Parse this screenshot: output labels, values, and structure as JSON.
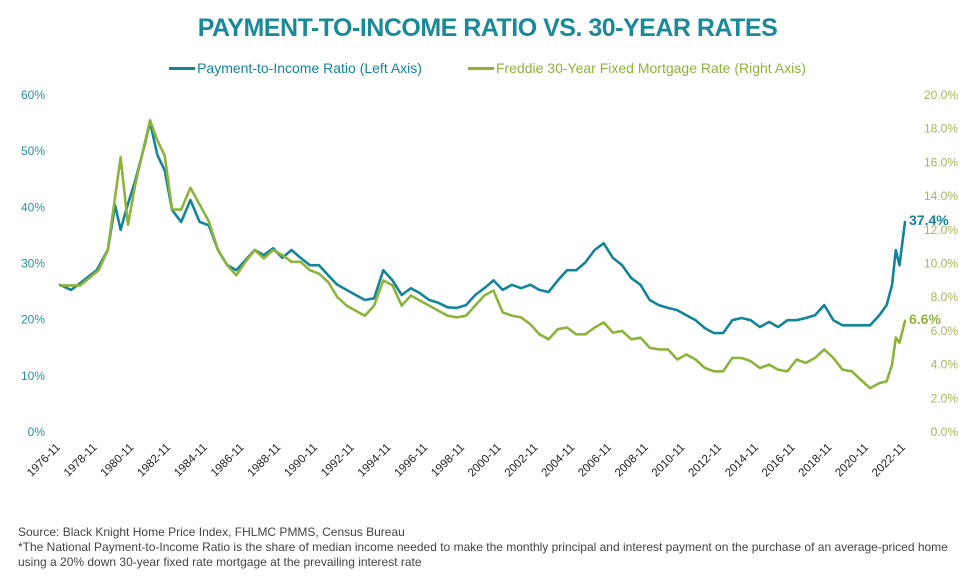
{
  "chart_data": {
    "type": "line",
    "title": "PAYMENT-TO-INCOME RATIO VS. 30-YEAR RATES",
    "xlabel": "",
    "x_range": [
      1976.9,
      2022.9
    ],
    "x_tick_labels": [
      "1976-11",
      "1978-11",
      "1980-11",
      "1982-11",
      "1984-11",
      "1986-11",
      "1988-11",
      "1990-11",
      "1992-11",
      "1994-11",
      "1996-11",
      "1998-11",
      "2000-11",
      "2002-11",
      "2004-11",
      "2006-11",
      "2008-11",
      "2010-11",
      "2012-11",
      "2014-11",
      "2016-11",
      "2018-11",
      "2020-11",
      "2022-11"
    ],
    "left_axis": {
      "label": "Payment-to-Income Ratio",
      "ylim": [
        0,
        60
      ],
      "tick_labels": [
        "0%",
        "10%",
        "20%",
        "30%",
        "40%",
        "50%",
        "60%"
      ],
      "tick_values": [
        0,
        10,
        20,
        30,
        40,
        50,
        60
      ],
      "color": "#1a8a99"
    },
    "right_axis": {
      "label": "Freddie 30-Year Fixed Mortgage Rate",
      "ylim": [
        0,
        20
      ],
      "tick_labels": [
        "0.0%",
        "2.0%",
        "4.0%",
        "6.0%",
        "8.0%",
        "10.0%",
        "12.0%",
        "14.0%",
        "16.0%",
        "18.0%",
        "20.0%"
      ],
      "tick_values": [
        0,
        2,
        4,
        6,
        8,
        10,
        12,
        14,
        16,
        18,
        20
      ],
      "color": "#8db33a"
    },
    "grid": false,
    "legend_position": "top-center",
    "series": [
      {
        "name": "Payment-to-Income Ratio (Left Axis)",
        "axis": "left",
        "color": "#13849a",
        "end_label": "37.4%",
        "x": [
          1976.9,
          1977.5,
          1978,
          1978.9,
          1979.5,
          1979.9,
          1980.2,
          1980.5,
          1981,
          1981.5,
          1981.8,
          1982.2,
          1982.6,
          1983,
          1983.5,
          1984,
          1984.5,
          1985,
          1985.5,
          1986,
          1986.5,
          1987,
          1987.5,
          1988,
          1988.5,
          1989,
          1989.5,
          1990,
          1990.5,
          1991,
          1991.5,
          1992,
          1992.5,
          1993,
          1993.5,
          1994,
          1994.5,
          1995,
          1995.5,
          1996,
          1996.5,
          1997,
          1997.5,
          1998,
          1998.5,
          1999,
          1999.5,
          2000,
          2000.5,
          2001,
          2001.5,
          2002,
          2002.5,
          2003,
          2003.5,
          2004,
          2004.5,
          2005,
          2005.5,
          2006,
          2006.5,
          2007,
          2007.5,
          2008,
          2008.5,
          2009,
          2009.5,
          2010,
          2010.5,
          2011,
          2011.5,
          2012,
          2012.5,
          2013,
          2013.5,
          2014,
          2014.5,
          2015,
          2015.5,
          2016,
          2016.5,
          2017,
          2017.5,
          2018,
          2018.5,
          2019,
          2019.5,
          2020,
          2020.5,
          2021,
          2021.5,
          2021.9,
          2022.2,
          2022.4,
          2022.6,
          2022.9
        ],
        "values": [
          26.2,
          25.3,
          26.5,
          28.8,
          32.4,
          40.4,
          36.0,
          39.5,
          44.8,
          51.0,
          55.2,
          49.3,
          46.6,
          39.5,
          37.4,
          41.3,
          37.4,
          36.8,
          32.4,
          29.7,
          28.8,
          30.6,
          32.4,
          31.5,
          32.7,
          31.0,
          32.4,
          31.0,
          29.7,
          29.7,
          27.9,
          26.2,
          25.3,
          24.4,
          23.5,
          23.8,
          28.8,
          27.0,
          24.4,
          25.6,
          24.7,
          23.5,
          23.0,
          22.2,
          22.1,
          22.6,
          24.4,
          25.6,
          27.0,
          25.3,
          26.2,
          25.6,
          26.2,
          25.3,
          24.9,
          27.0,
          28.8,
          28.8,
          30.2,
          32.4,
          33.6,
          31.0,
          29.7,
          27.4,
          26.2,
          23.5,
          22.6,
          22.1,
          21.7,
          20.8,
          19.9,
          18.5,
          17.6,
          17.6,
          19.9,
          20.3,
          19.9,
          18.7,
          19.6,
          18.7,
          19.9,
          19.9,
          20.3,
          20.8,
          22.6,
          19.9,
          19.0,
          19.0,
          19.0,
          19.0,
          20.8,
          22.6,
          26.2,
          32.4,
          29.7,
          37.4
        ]
      },
      {
        "name": "Freddie 30-Year Fixed Mortgage Rate (Right Axis)",
        "axis": "right",
        "color": "#8db33a",
        "end_label": "6.6%",
        "x": [
          1976.9,
          1978,
          1979,
          1979.5,
          1980.2,
          1980.6,
          1981,
          1981.8,
          1982.2,
          1982.6,
          1983,
          1983.5,
          1984,
          1984.5,
          1985,
          1985.5,
          1986,
          1986.5,
          1987,
          1987.5,
          1988,
          1988.5,
          1989,
          1989.5,
          1990,
          1990.5,
          1991,
          1991.5,
          1992,
          1992.5,
          1993,
          1993.5,
          1994,
          1994.5,
          1995,
          1995.5,
          1996,
          1996.5,
          1997,
          1997.5,
          1998,
          1998.5,
          1999,
          1999.5,
          2000,
          2000.5,
          2001,
          2001.5,
          2002,
          2002.5,
          2003,
          2003.5,
          2004,
          2004.5,
          2005,
          2005.5,
          2006,
          2006.5,
          2007,
          2007.5,
          2008,
          2008.5,
          2009,
          2009.5,
          2010,
          2010.5,
          2011,
          2011.5,
          2012,
          2012.5,
          2013,
          2013.5,
          2014,
          2014.5,
          2015,
          2015.5,
          2016,
          2016.5,
          2017,
          2017.5,
          2018,
          2018.5,
          2019,
          2019.5,
          2020,
          2020.5,
          2021,
          2021.5,
          2021.9,
          2022.2,
          2022.4,
          2022.6,
          2022.9
        ],
        "values": [
          8.7,
          8.7,
          9.6,
          10.8,
          16.3,
          12.3,
          14.7,
          18.5,
          17.3,
          16.4,
          13.2,
          13.2,
          14.5,
          13.5,
          12.5,
          10.8,
          9.9,
          9.3,
          10.1,
          10.8,
          10.3,
          10.8,
          10.5,
          10.1,
          10.1,
          9.6,
          9.4,
          8.9,
          8.0,
          7.5,
          7.2,
          6.9,
          7.5,
          9.0,
          8.7,
          7.5,
          8.1,
          7.8,
          7.5,
          7.2,
          6.9,
          6.8,
          6.9,
          7.5,
          8.1,
          8.4,
          7.1,
          6.9,
          6.8,
          6.4,
          5.8,
          5.5,
          6.1,
          6.2,
          5.8,
          5.8,
          6.2,
          6.5,
          5.9,
          6.0,
          5.5,
          5.6,
          5.0,
          4.9,
          4.9,
          4.3,
          4.6,
          4.3,
          3.8,
          3.6,
          3.6,
          4.4,
          4.4,
          4.2,
          3.8,
          4.0,
          3.7,
          3.6,
          4.3,
          4.1,
          4.4,
          4.9,
          4.4,
          3.7,
          3.6,
          3.1,
          2.6,
          2.9,
          3.0,
          4.0,
          5.6,
          5.3,
          6.6
        ]
      }
    ]
  },
  "header": {
    "title": "PAYMENT-TO-INCOME RATIO VS. 30-YEAR RATES"
  },
  "legend": {
    "items": [
      {
        "label": "Payment-to-Income Ratio (Left Axis)",
        "color": "#13849a"
      },
      {
        "label": "Freddie 30-Year Fixed Mortgage Rate (Right Axis)",
        "color": "#8db33a"
      }
    ]
  },
  "footer": {
    "source": "Source: Black Knight Home Price Index, FHLMC PMMS, Census Bureau",
    "note": "*The National Payment-to-Income Ratio is the share of median income needed to make the monthly principal and interest payment on the purchase of an average-priced home using a 20% down 30-year fixed rate mortgage at the prevailing interest rate"
  }
}
